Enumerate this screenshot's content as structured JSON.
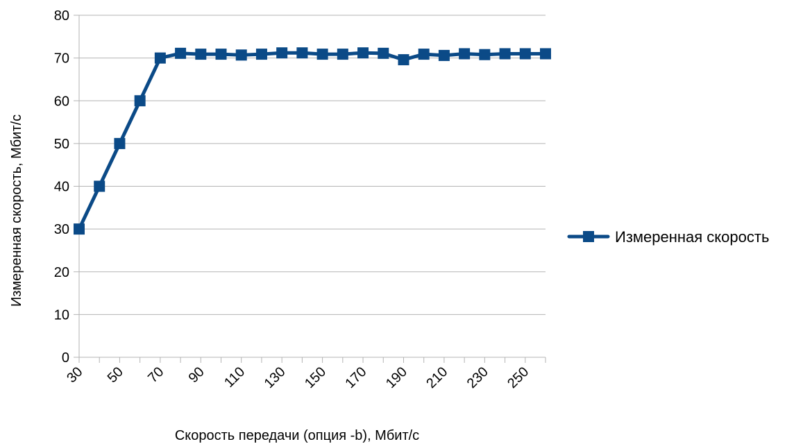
{
  "chart_data": {
    "type": "line",
    "title": "",
    "xlabel": "Скорость передачи (опция -b), Мбит/с",
    "ylabel": "Измеренная скорость, Мбит/с",
    "x": [
      30,
      40,
      50,
      60,
      70,
      80,
      90,
      100,
      110,
      120,
      130,
      140,
      150,
      160,
      170,
      180,
      190,
      200,
      210,
      220,
      230,
      240,
      250,
      260
    ],
    "x_tick_labels": [
      "30",
      "50",
      "70",
      "90",
      "110",
      "130",
      "150",
      "170",
      "190",
      "210",
      "230",
      "250"
    ],
    "ylim": [
      0,
      80
    ],
    "y_ticks": [
      0,
      10,
      20,
      30,
      40,
      50,
      60,
      70,
      80
    ],
    "grid": true,
    "legend_position": "right",
    "series": [
      {
        "name": "Измеренная скорость",
        "color": "#0b4a87",
        "marker": "square",
        "values": [
          30,
          40,
          50,
          60,
          70,
          71.1,
          70.9,
          70.9,
          70.7,
          70.9,
          71.2,
          71.2,
          70.9,
          70.9,
          71.2,
          71.1,
          69.6,
          70.9,
          70.6,
          71.0,
          70.8,
          71.0,
          71.0,
          71.0
        ]
      }
    ]
  }
}
